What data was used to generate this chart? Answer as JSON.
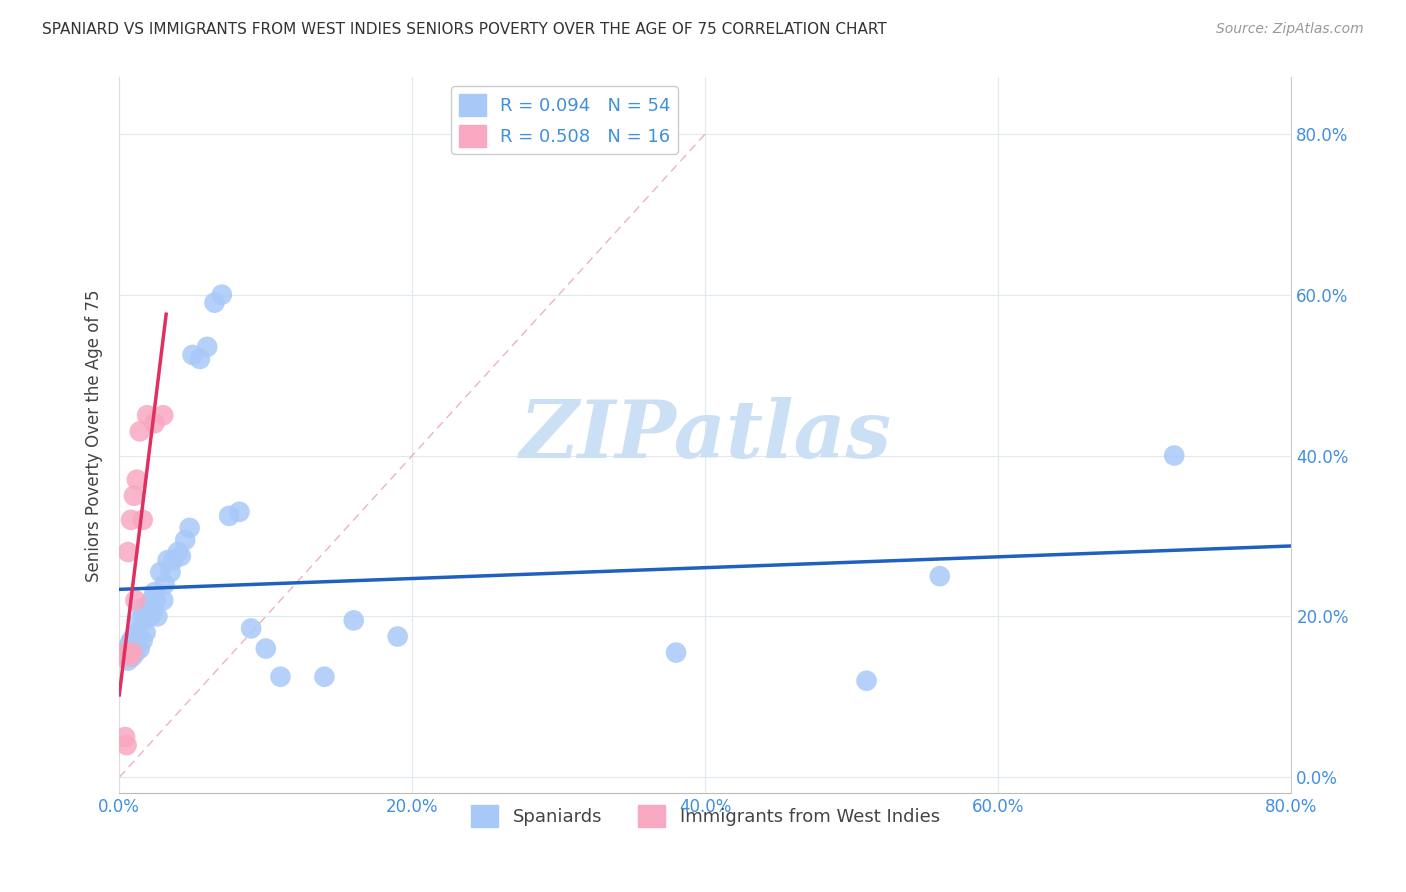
{
  "title": "SPANIARD VS IMMIGRANTS FROM WEST INDIES SENIORS POVERTY OVER THE AGE OF 75 CORRELATION CHART",
  "source": "Source: ZipAtlas.com",
  "ylabel": "Seniors Poverty Over the Age of 75",
  "xlim": [
    0.0,
    0.8
  ],
  "ylim": [
    -0.02,
    0.87
  ],
  "ytick_vals": [
    0.0,
    0.2,
    0.4,
    0.6,
    0.8
  ],
  "xtick_vals": [
    0.0,
    0.2,
    0.4,
    0.6,
    0.8
  ],
  "legend1_label": "R = 0.094   N = 54",
  "legend2_label": "R = 0.508   N = 16",
  "legend_bottom1": "Spaniards",
  "legend_bottom2": "Immigrants from West Indies",
  "spaniards_color": "#a8c8f8",
  "immigrants_color": "#f8a8c0",
  "spaniards_line_color": "#2060c0",
  "immigrants_line_color": "#e03060",
  "ref_line_color": "#e8a0b0",
  "watermark": "ZIPatlas",
  "watermark_color": "#cce0f5",
  "background_color": "#ffffff",
  "grid_color": "#e0e8f0",
  "tick_color": "#4090e0",
  "spaniards_x": [
    0.003,
    0.005,
    0.006,
    0.007,
    0.007,
    0.008,
    0.009,
    0.01,
    0.01,
    0.011,
    0.012,
    0.012,
    0.013,
    0.014,
    0.014,
    0.015,
    0.016,
    0.017,
    0.018,
    0.018,
    0.02,
    0.021,
    0.022,
    0.023,
    0.024,
    0.025,
    0.026,
    0.028,
    0.03,
    0.031,
    0.033,
    0.035,
    0.037,
    0.04,
    0.042,
    0.045,
    0.048,
    0.05,
    0.055,
    0.06,
    0.065,
    0.07,
    0.075,
    0.082,
    0.09,
    0.1,
    0.11,
    0.14,
    0.16,
    0.19,
    0.38,
    0.51,
    0.56,
    0.72
  ],
  "spaniards_y": [
    0.155,
    0.16,
    0.145,
    0.165,
    0.155,
    0.17,
    0.15,
    0.16,
    0.175,
    0.155,
    0.18,
    0.165,
    0.175,
    0.195,
    0.16,
    0.21,
    0.17,
    0.195,
    0.18,
    0.2,
    0.215,
    0.2,
    0.22,
    0.205,
    0.23,
    0.22,
    0.2,
    0.255,
    0.22,
    0.24,
    0.27,
    0.255,
    0.27,
    0.28,
    0.275,
    0.295,
    0.31,
    0.525,
    0.52,
    0.535,
    0.59,
    0.6,
    0.325,
    0.33,
    0.185,
    0.16,
    0.125,
    0.125,
    0.195,
    0.175,
    0.155,
    0.12,
    0.25,
    0.4
  ],
  "immigrants_x": [
    0.003,
    0.004,
    0.004,
    0.005,
    0.006,
    0.007,
    0.008,
    0.009,
    0.01,
    0.011,
    0.012,
    0.014,
    0.016,
    0.019,
    0.024,
    0.03
  ],
  "immigrants_y": [
    0.15,
    0.155,
    0.05,
    0.04,
    0.28,
    0.15,
    0.32,
    0.155,
    0.35,
    0.22,
    0.37,
    0.43,
    0.32,
    0.45,
    0.44,
    0.45
  ]
}
